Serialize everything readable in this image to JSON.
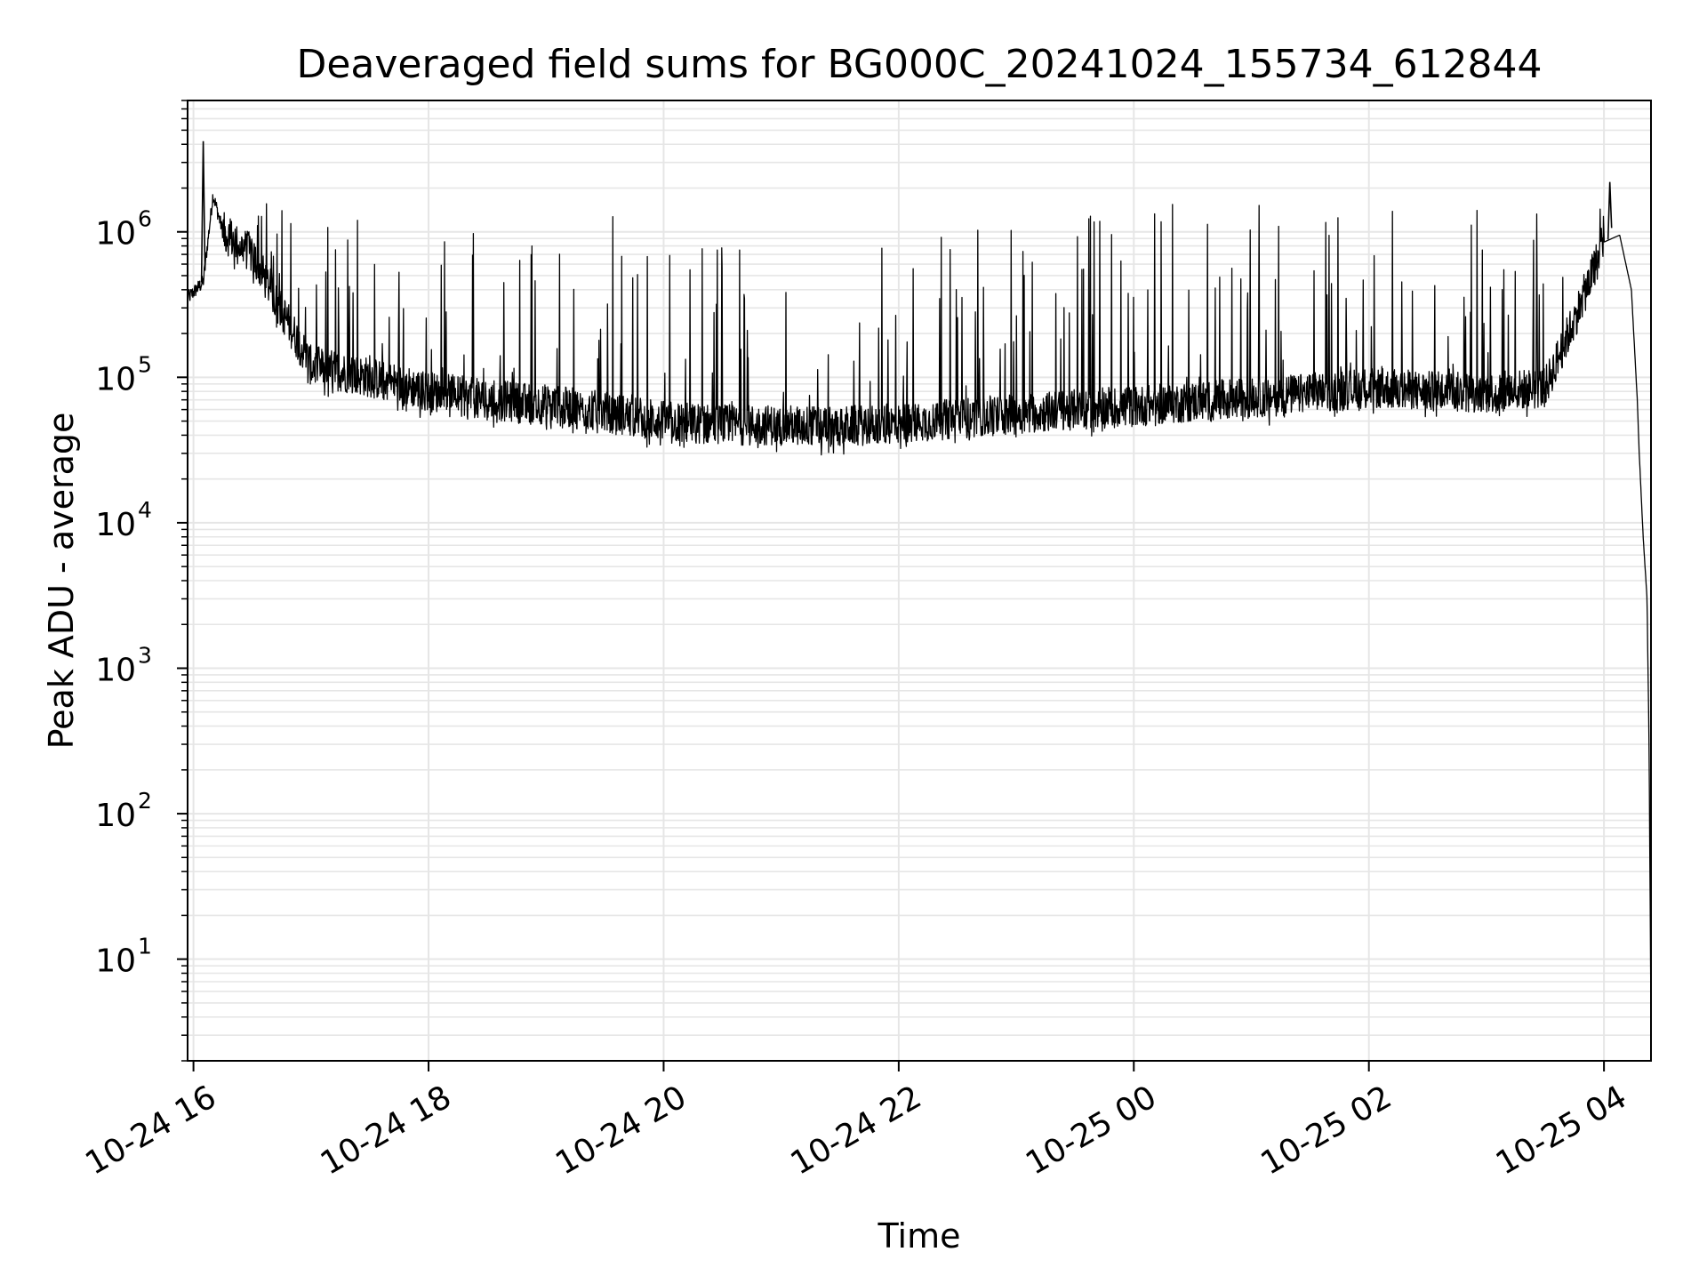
{
  "chart_data": {
    "type": "line",
    "title": "Deaveraged field sums for BG000C_20241024_155734_612844",
    "xlabel": "Time",
    "ylabel": "Peak ADU - average",
    "yscale": "log",
    "grid": true,
    "legend": "none",
    "x_range": [
      "2024-10-24 15:57",
      "2024-10-25 04:24"
    ],
    "y_range": [
      2,
      8000000
    ],
    "x_ticks": [
      {
        "value": "2024-10-24 16:00",
        "label": "10-24 16"
      },
      {
        "value": "2024-10-24 18:00",
        "label": "10-24 18"
      },
      {
        "value": "2024-10-24 20:00",
        "label": "10-24 20"
      },
      {
        "value": "2024-10-24 22:00",
        "label": "10-24 22"
      },
      {
        "value": "2024-10-25 00:00",
        "label": "10-25 00"
      },
      {
        "value": "2024-10-25 02:00",
        "label": "10-25 02"
      },
      {
        "value": "2024-10-25 04:00",
        "label": "10-25 04"
      }
    ],
    "y_ticks": [
      {
        "value": 10,
        "base": "10",
        "exp": "1"
      },
      {
        "value": 100,
        "base": "10",
        "exp": "2"
      },
      {
        "value": 1000,
        "base": "10",
        "exp": "3"
      },
      {
        "value": 10000,
        "base": "10",
        "exp": "4"
      },
      {
        "value": 100000,
        "base": "10",
        "exp": "5"
      },
      {
        "value": 1000000,
        "base": "10",
        "exp": "6"
      }
    ],
    "series_color": "#000000",
    "grid_color": "#e6e6e6",
    "series": [
      {
        "baseline": [
          [
            "2024-10-24 15:57",
            350000
          ],
          [
            "2024-10-24 16:05",
            450000
          ],
          [
            "2024-10-24 16:10",
            1800000
          ],
          [
            "2024-10-24 16:15",
            1000000
          ],
          [
            "2024-10-24 16:30",
            700000
          ],
          [
            "2024-10-24 17:00",
            120000
          ],
          [
            "2024-10-24 17:30",
            100000
          ],
          [
            "2024-10-24 18:00",
            80000
          ],
          [
            "2024-10-24 18:30",
            70000
          ],
          [
            "2024-10-24 19:00",
            65000
          ],
          [
            "2024-10-24 19:30",
            58000
          ],
          [
            "2024-10-24 20:00",
            50000
          ],
          [
            "2024-10-24 20:30",
            47000
          ],
          [
            "2024-10-24 21:00",
            47000
          ],
          [
            "2024-10-24 21:30",
            46000
          ],
          [
            "2024-10-24 22:00",
            48000
          ],
          [
            "2024-10-24 22:30",
            52000
          ],
          [
            "2024-10-24 23:00",
            56000
          ],
          [
            "2024-10-24 23:30",
            60000
          ],
          [
            "2024-10-25 00:00",
            63000
          ],
          [
            "2024-10-25 00:30",
            68000
          ],
          [
            "2024-10-25 01:00",
            72000
          ],
          [
            "2024-10-25 01:30",
            78000
          ],
          [
            "2024-10-25 02:00",
            85000
          ],
          [
            "2024-10-25 02:30",
            80000
          ],
          [
            "2024-10-25 03:00",
            78000
          ],
          [
            "2024-10-25 03:30",
            85000
          ],
          [
            "2024-10-25 03:45",
            250000
          ],
          [
            "2024-10-25 04:00",
            850000
          ],
          [
            "2024-10-25 04:08",
            950000
          ],
          [
            "2024-10-25 04:14",
            400000
          ],
          [
            "2024-10-25 04:17",
            70000
          ],
          [
            "2024-10-25 04:18",
            30000
          ],
          [
            "2024-10-25 04:20",
            8000
          ],
          [
            "2024-10-25 04:22",
            3000
          ],
          [
            "2024-10-25 04:23",
            300
          ],
          [
            "2024-10-25 04:24",
            4
          ]
        ],
        "spike_ceiling": [
          [
            "2024-10-24 16:15",
            1600000
          ],
          [
            "2024-10-24 17:30",
            1600000
          ],
          [
            "2024-10-24 18:00",
            1300000
          ],
          [
            "2024-10-24 19:00",
            900000
          ],
          [
            "2024-10-24 19:30",
            1400000
          ],
          [
            "2024-10-24 20:00",
            1000000
          ],
          [
            "2024-10-24 21:00",
            700000
          ],
          [
            "2024-10-24 22:00",
            800000
          ],
          [
            "2024-10-24 23:00",
            1200000
          ],
          [
            "2024-10-25 00:00",
            1600000
          ],
          [
            "2024-10-25 02:00",
            1600000
          ],
          [
            "2024-10-25 03:45",
            1600000
          ]
        ],
        "peaks": [
          [
            "2024-10-24 16:05",
            4200000
          ],
          [
            "2024-10-25 04:03",
            2200000
          ]
        ]
      }
    ]
  }
}
